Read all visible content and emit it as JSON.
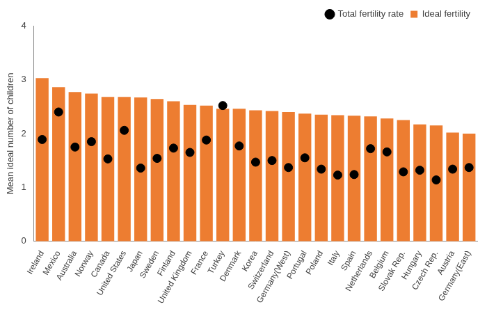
{
  "chart_data": {
    "type": "bar",
    "y_label": "Mean ideal number of children",
    "categories": [
      "Ireland",
      "Mexico",
      "Australia",
      "Norway",
      "Canada",
      "United States",
      "Japan",
      "Sweden",
      "Finland",
      "United Kingdom",
      "France",
      "Turkey",
      "Denmark",
      "Korea",
      "Switzerland",
      "Germany(West)",
      "Portugal",
      "Poland",
      "Italy",
      "Spain",
      "Netherlands",
      "Belgium",
      "Slovak Rep.",
      "Hungary",
      "Czech Rep.",
      "Austria",
      "Germany(East)"
    ],
    "series": [
      {
        "name": "Ideal fertility",
        "type": "bar",
        "color": "#ED7D31",
        "values": [
          3.03,
          2.86,
          2.77,
          2.74,
          2.68,
          2.68,
          2.67,
          2.64,
          2.6,
          2.53,
          2.52,
          2.46,
          2.46,
          2.43,
          2.42,
          2.4,
          2.37,
          2.35,
          2.34,
          2.33,
          2.32,
          2.28,
          2.25,
          2.17,
          2.15,
          2.02,
          2.0
        ]
      },
      {
        "name": "Total fertility rate",
        "type": "line",
        "color": "#000000",
        "marker": "circle",
        "line_style": "none",
        "values": [
          1.89,
          2.4,
          1.75,
          1.85,
          1.53,
          2.06,
          1.36,
          1.54,
          1.73,
          1.65,
          1.88,
          2.52,
          1.77,
          1.47,
          1.5,
          1.37,
          1.55,
          1.34,
          1.23,
          1.24,
          1.72,
          1.66,
          1.29,
          1.32,
          1.14,
          1.34,
          1.37
        ]
      }
    ],
    "ylim": [
      0,
      4
    ],
    "yticks": [
      0,
      1,
      2,
      3,
      4
    ],
    "grid": false,
    "legend": "top-right"
  }
}
